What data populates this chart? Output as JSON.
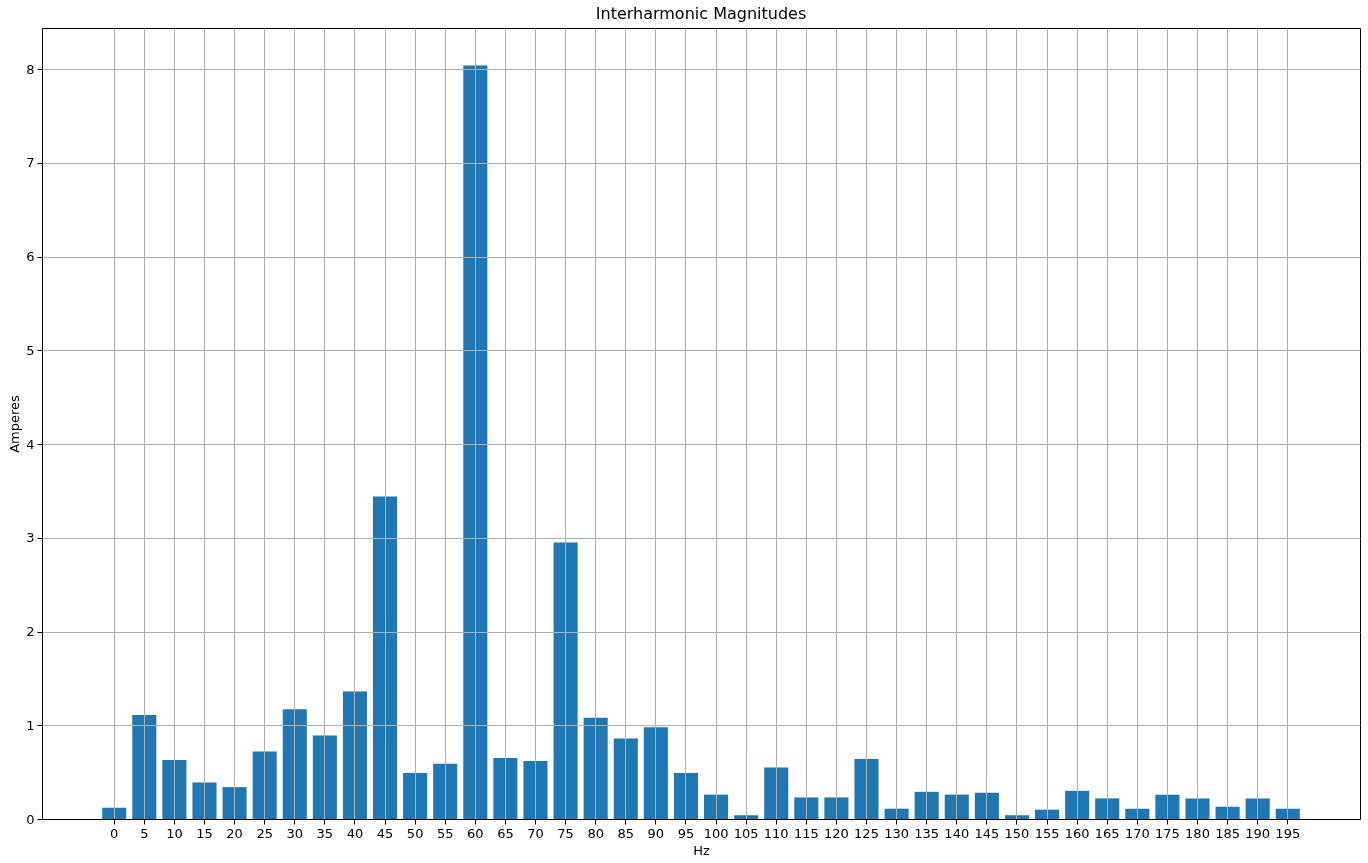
{
  "chart_data": {
    "type": "bar",
    "title": "Interharmonic Magnitudes",
    "xlabel": "Hz",
    "ylabel": "Amperes",
    "categories": [
      "0",
      "5",
      "10",
      "15",
      "20",
      "25",
      "30",
      "35",
      "40",
      "45",
      "50",
      "55",
      "60",
      "65",
      "70",
      "75",
      "80",
      "85",
      "90",
      "95",
      "100",
      "105",
      "110",
      "115",
      "120",
      "125",
      "130",
      "135",
      "140",
      "145",
      "150",
      "155",
      "160",
      "165",
      "170",
      "175",
      "180",
      "185",
      "190",
      "195"
    ],
    "values": [
      0.12,
      1.11,
      0.63,
      0.39,
      0.34,
      0.72,
      1.17,
      0.89,
      1.36,
      3.44,
      0.49,
      0.59,
      8.04,
      0.65,
      0.62,
      2.95,
      1.08,
      0.86,
      0.98,
      0.49,
      0.26,
      0.04,
      0.55,
      0.23,
      0.23,
      0.64,
      0.11,
      0.29,
      0.26,
      0.28,
      0.04,
      0.1,
      0.3,
      0.22,
      0.11,
      0.26,
      0.22,
      0.13,
      0.22,
      0.11
    ],
    "color": "#1f77b4",
    "ylim": [
      0,
      8.44
    ],
    "yticks": [
      0,
      1,
      2,
      3,
      4,
      5,
      6,
      7,
      8
    ],
    "grid": true
  }
}
